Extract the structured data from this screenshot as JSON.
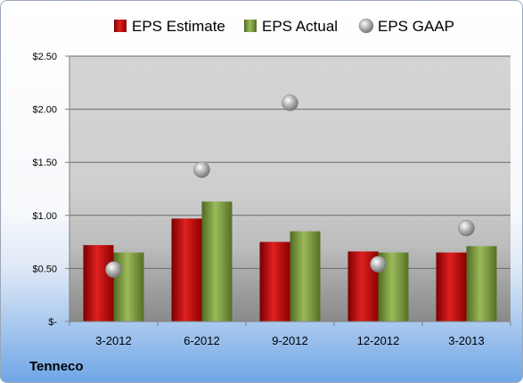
{
  "company": "Tenneco",
  "chart_data": {
    "type": "bar",
    "categories": [
      "3-2012",
      "6-2012",
      "9-2012",
      "12-2012",
      "3-2013"
    ],
    "series": [
      {
        "name": "EPS Estimate",
        "kind": "bar",
        "color": "#c00000",
        "values": [
          0.72,
          0.97,
          0.75,
          0.66,
          0.65
        ]
      },
      {
        "name": "EPS Actual",
        "kind": "bar",
        "color": "#77933c",
        "values": [
          0.65,
          1.13,
          0.85,
          0.65,
          0.71
        ]
      },
      {
        "name": "EPS GAAP",
        "kind": "marker",
        "color": "#a6a6a6",
        "values": [
          0.49,
          1.43,
          2.06,
          0.54,
          0.88
        ]
      }
    ],
    "yticks": [
      "$-",
      "$0.50",
      "$1.00",
      "$1.50",
      "$2.00",
      "$2.50"
    ],
    "ylim": [
      0,
      2.5
    ],
    "grid": true,
    "legend": "top"
  }
}
